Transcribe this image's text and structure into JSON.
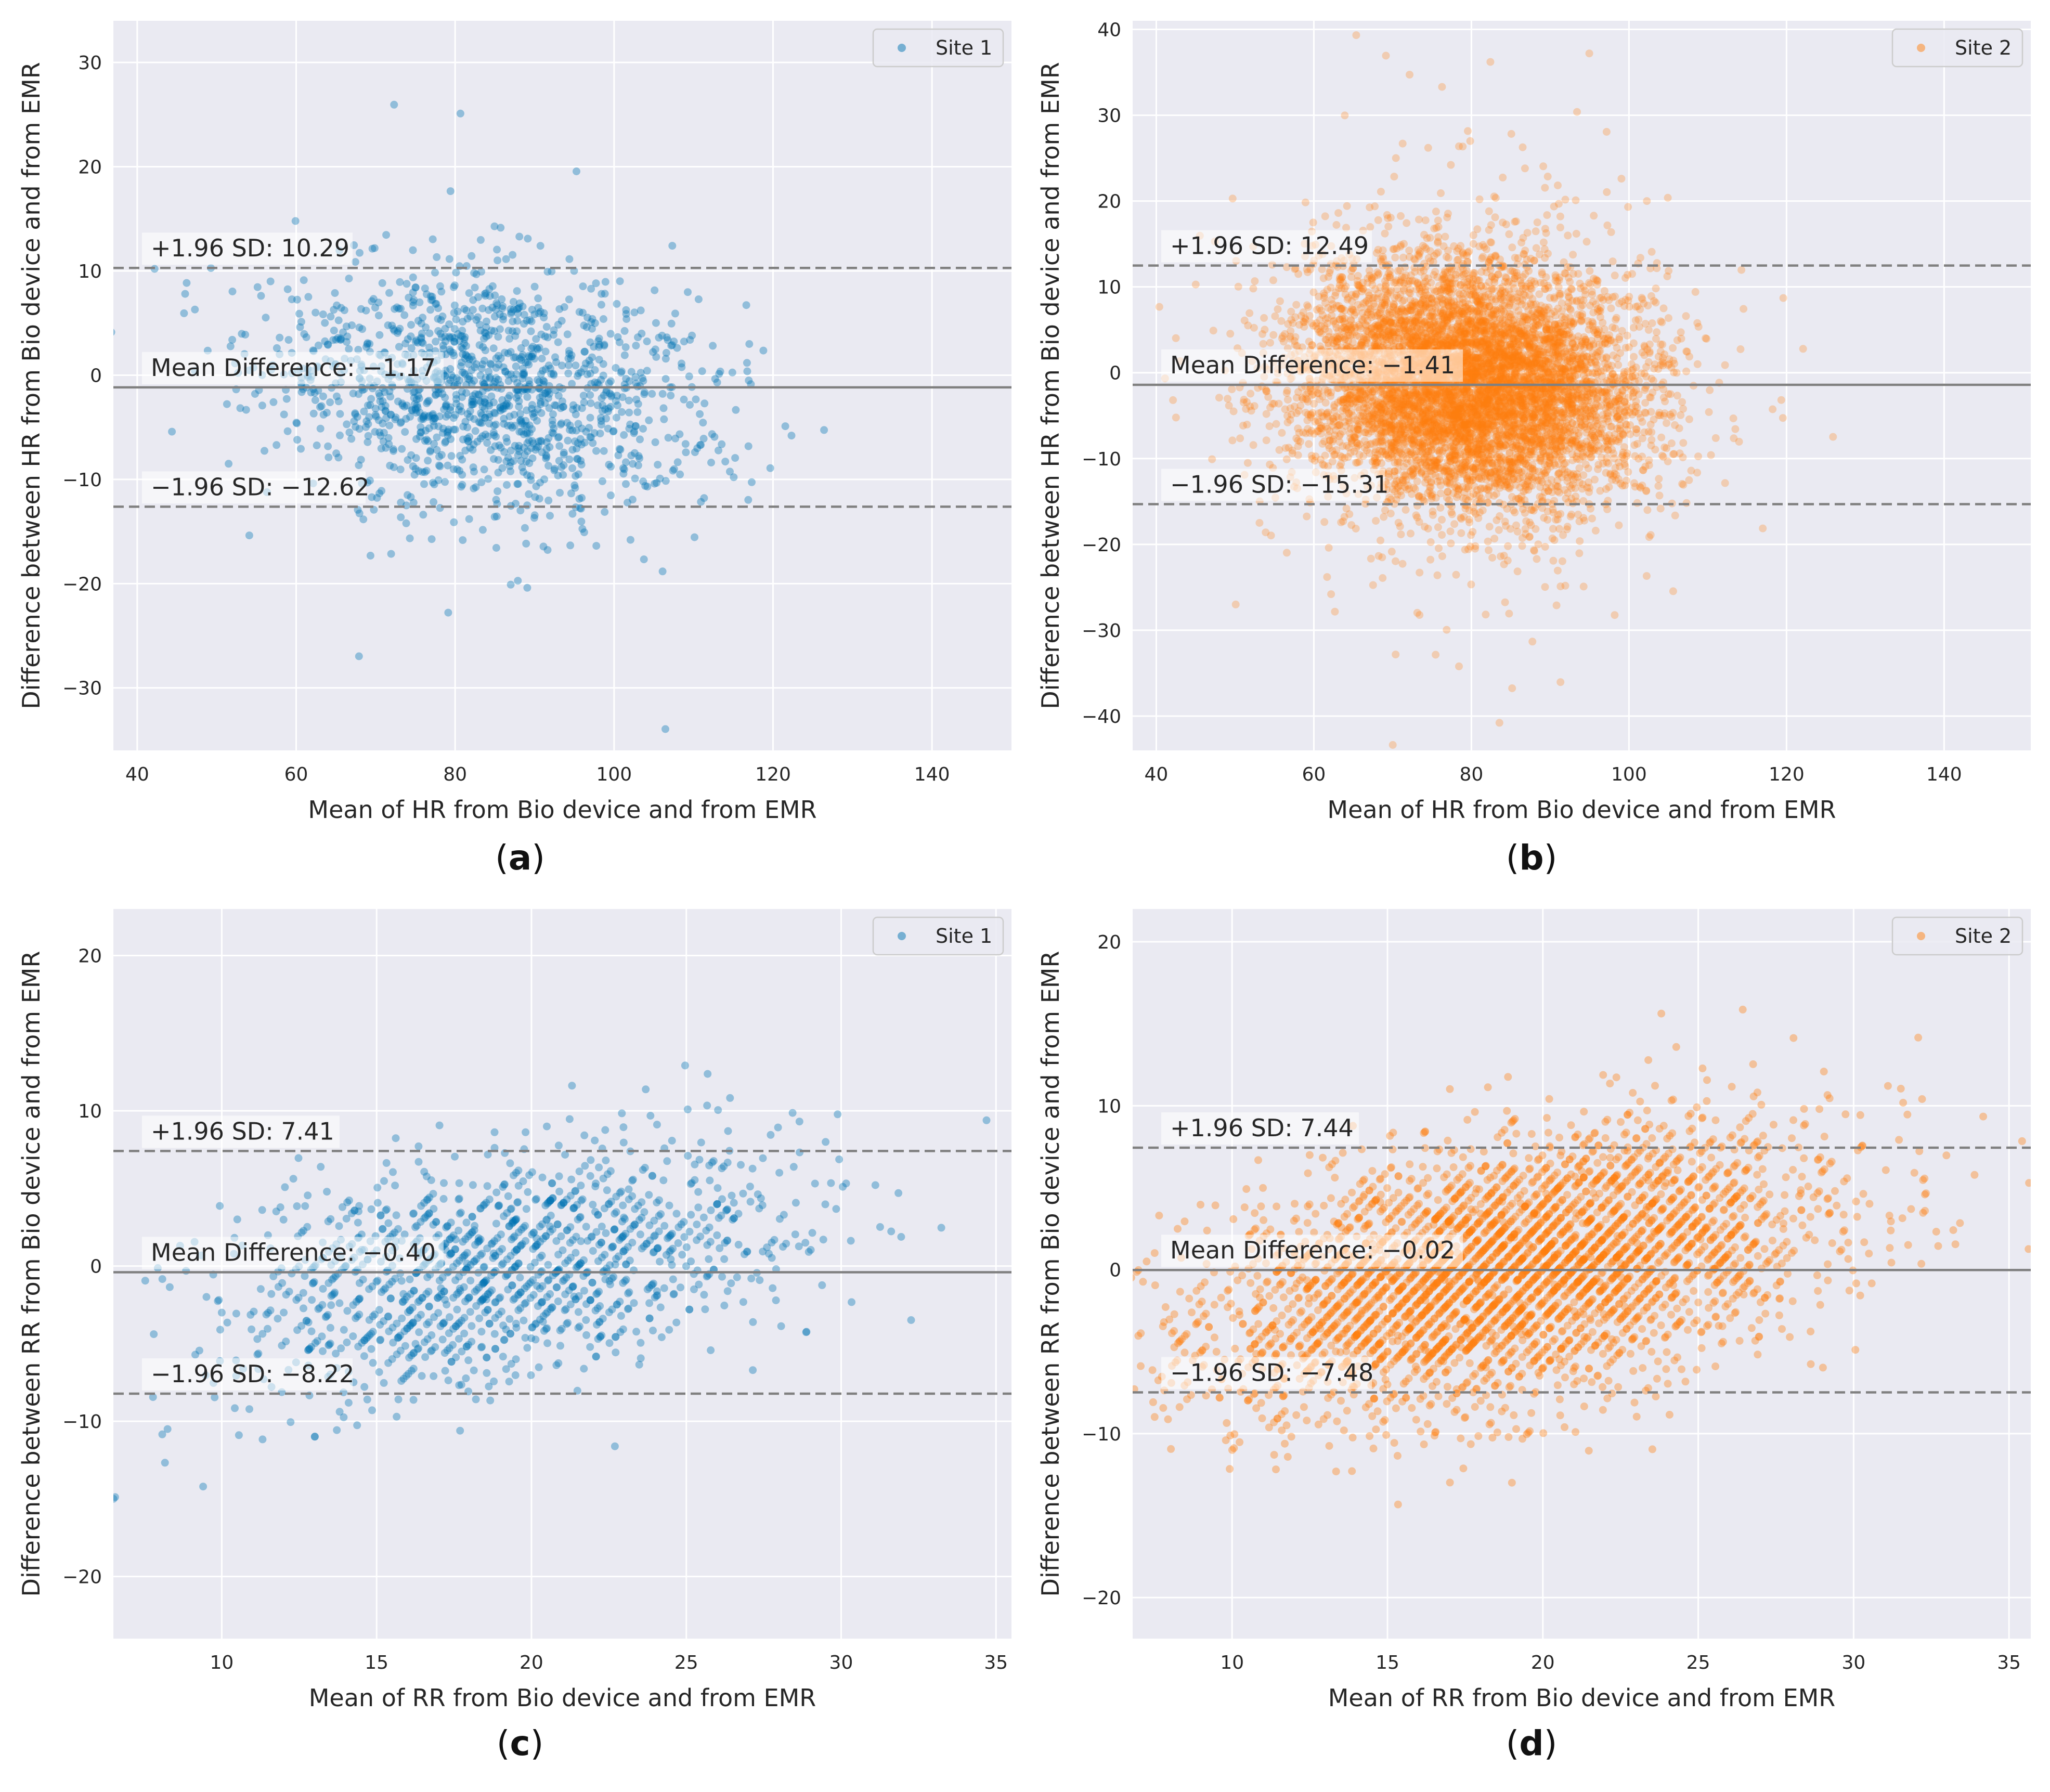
{
  "chart_data": [
    {
      "panel_label": "(a)",
      "type": "scatter",
      "title": "",
      "xlabel": "Mean of HR from Bio device and from EMR",
      "ylabel": "Difference between HR from Bio device and from EMR",
      "xlim": [
        37,
        150
      ],
      "ylim": [
        -36,
        34
      ],
      "xticks": [
        40,
        60,
        80,
        100,
        120,
        140
      ],
      "yticks": [
        -30,
        -20,
        -10,
        0,
        10,
        20,
        30
      ],
      "grid": true,
      "legend": {
        "label": "Site 1",
        "position": "top-right"
      },
      "series_color": "#0173b2",
      "pattern": "blob",
      "point_count": 1400,
      "center_x": 84,
      "spread_x": 14,
      "center_y": -1.17,
      "spread_y": 5.7,
      "mean_difference": -1.17,
      "upper_loa": 10.29,
      "lower_loa": -12.62,
      "labels": {
        "upper": "+1.96 SD: 10.29",
        "mean": "Mean Difference: −1.17",
        "lower": "−1.96 SD: −12.62"
      }
    },
    {
      "panel_label": "(b)",
      "type": "scatter",
      "title": "",
      "xlabel": "Mean of HR from Bio device and from EMR",
      "ylabel": "Difference between HR from Bio device and from EMR",
      "xlim": [
        37,
        151
      ],
      "ylim": [
        -44,
        41
      ],
      "xticks": [
        40,
        60,
        80,
        100,
        120,
        140
      ],
      "yticks": [
        -40,
        -30,
        -20,
        -10,
        0,
        10,
        20,
        30,
        40
      ],
      "grid": true,
      "legend": {
        "label": "Site 2",
        "position": "top-right"
      },
      "series_color": "#ff7f0e",
      "pattern": "blob",
      "point_count": 7000,
      "center_x": 80,
      "spread_x": 11,
      "center_y": -1.41,
      "spread_y": 6.9,
      "mean_difference": -1.41,
      "upper_loa": 12.49,
      "lower_loa": -15.31,
      "labels": {
        "upper": "+1.96 SD: 12.49",
        "mean": "Mean Difference: −1.41",
        "lower": "−1.96 SD: −15.31"
      }
    },
    {
      "panel_label": "(c)",
      "type": "scatter",
      "title": "",
      "xlabel": "Mean of RR from Bio device and from EMR",
      "ylabel": "Difference between RR from Bio device and from EMR",
      "xlim": [
        6.5,
        35.5
      ],
      "ylim": [
        -24,
        23
      ],
      "xticks": [
        10,
        15,
        20,
        25,
        30,
        35
      ],
      "yticks": [
        -20,
        -10,
        0,
        10,
        20
      ],
      "grid": true,
      "legend": {
        "label": "Site 1",
        "position": "top-right"
      },
      "series_color": "#0173b2",
      "pattern": "diagonal",
      "point_count": 1300,
      "center_x": 19,
      "spread_x": 4.5,
      "center_y": -0.4,
      "spread_y": 4.0,
      "mean_difference": -0.4,
      "upper_loa": 7.41,
      "lower_loa": -8.22,
      "labels": {
        "upper": "+1.96 SD: 7.41",
        "mean": "Mean Difference: −0.40",
        "lower": "−1.96 SD: −8.22"
      }
    },
    {
      "panel_label": "(d)",
      "type": "scatter",
      "title": "",
      "xlabel": "Mean of RR from Bio device and from EMR",
      "ylabel": "Difference between RR from Bio device and from EMR",
      "xlim": [
        6.8,
        35.7
      ],
      "ylim": [
        -22.5,
        22
      ],
      "xticks": [
        10,
        15,
        20,
        25,
        30,
        35
      ],
      "yticks": [
        -20,
        -10,
        0,
        10,
        20
      ],
      "grid": true,
      "legend": {
        "label": "Site 2",
        "position": "top-right"
      },
      "series_color": "#ff7f0e",
      "pattern": "diagonal",
      "point_count": 3800,
      "center_x": 19,
      "spread_x": 4.5,
      "center_y": -0.02,
      "spread_y": 4.0,
      "mean_difference": -0.02,
      "upper_loa": 7.44,
      "lower_loa": -7.48,
      "labels": {
        "upper": "+1.96 SD: 7.44",
        "mean": "Mean Difference: −0.02",
        "lower": "−1.96 SD: −7.48"
      }
    }
  ]
}
